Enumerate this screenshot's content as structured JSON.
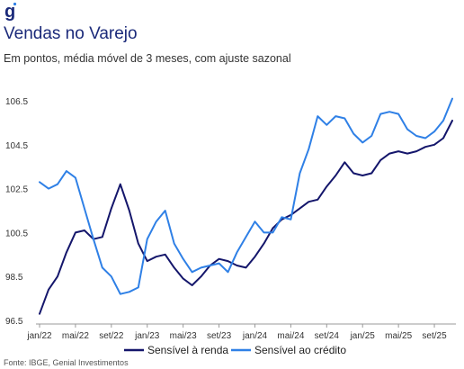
{
  "logo_text": "g",
  "title": "Vendas no Varejo",
  "subtitle": "Em pontos, média móvel de 3 meses, com ajuste sazonal",
  "source": "Fonte: IBGE, Genial Investimentos",
  "colors": {
    "title": "#1b2a7a",
    "series_dark": "#14166b",
    "series_light": "#2f80e6",
    "logo": "#2f80e6"
  },
  "chart_data": {
    "type": "line",
    "title": "Vendas no Varejo",
    "subtitle": "Em pontos, média móvel de 3 meses, com ajuste sazonal",
    "xlabel": "",
    "ylabel": "",
    "ylim": [
      96.5,
      106.5
    ],
    "yticks": [
      "96.5",
      "98.5",
      "100.5",
      "102.5",
      "104.5",
      "106.5"
    ],
    "xticks": [
      {
        "index": 0,
        "label": "jan/22"
      },
      {
        "index": 4,
        "label": "mai/22"
      },
      {
        "index": 8,
        "label": "set/22"
      },
      {
        "index": 12,
        "label": "jan/23"
      },
      {
        "index": 16,
        "label": "mai/23"
      },
      {
        "index": 20,
        "label": "set/23"
      },
      {
        "index": 24,
        "label": "jan/24"
      },
      {
        "index": 28,
        "label": "mai/24"
      },
      {
        "index": 32,
        "label": "set/24"
      },
      {
        "index": 36,
        "label": "jan/25"
      },
      {
        "index": 40,
        "label": "mai/25"
      },
      {
        "index": 44,
        "label": "set/25"
      }
    ],
    "grid": false,
    "legend": "bottom",
    "series": [
      {
        "name": "Sensível à renda",
        "color": "#14166b",
        "values": [
          96.8,
          97.9,
          98.5,
          99.6,
          100.5,
          100.6,
          100.2,
          100.3,
          101.6,
          102.7,
          101.5,
          100.0,
          99.2,
          99.4,
          99.5,
          98.9,
          98.4,
          98.1,
          98.5,
          99.0,
          99.3,
          99.2,
          99.0,
          98.9,
          99.4,
          100.0,
          100.7,
          101.1,
          101.3,
          101.6,
          101.9,
          102.0,
          102.6,
          103.1,
          103.7,
          103.2,
          103.1,
          103.2,
          103.8,
          104.1,
          104.2,
          104.1,
          104.2,
          104.4,
          104.5,
          104.8,
          105.6
        ]
      },
      {
        "name": "Sensível ao crédito",
        "color": "#2f80e6",
        "values": [
          102.8,
          102.5,
          102.7,
          103.3,
          103.0,
          101.6,
          100.2,
          98.9,
          98.5,
          97.7,
          97.8,
          98.0,
          100.2,
          101.0,
          101.5,
          100.0,
          99.3,
          98.7,
          98.9,
          99.0,
          99.1,
          98.7,
          99.6,
          100.3,
          101.0,
          100.5,
          100.5,
          101.2,
          101.1,
          103.2,
          104.3,
          105.8,
          105.4,
          105.8,
          105.7,
          105.0,
          104.6,
          104.9,
          105.9,
          106.0,
          105.9,
          105.2,
          104.9,
          104.8,
          105.1,
          105.6,
          106.6
        ]
      }
    ]
  }
}
